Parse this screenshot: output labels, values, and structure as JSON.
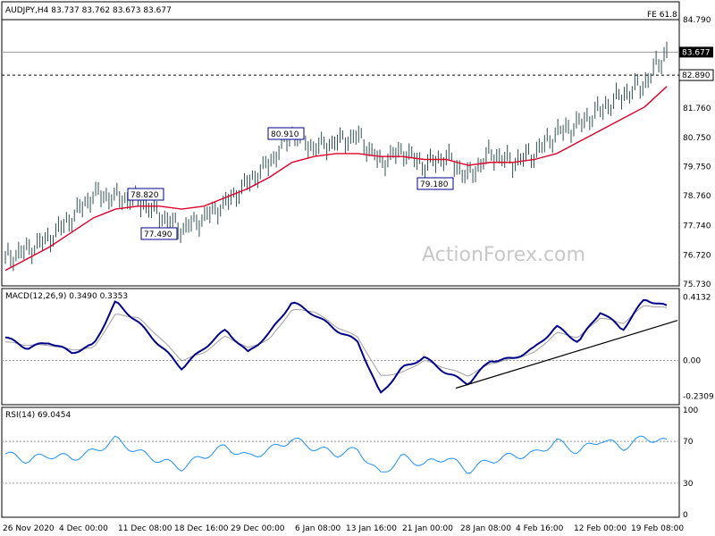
{
  "header": {
    "symbol_line": "AUDJPY,H4  83.737 83.762 83.673 83.677",
    "fe_label": "FE 61.8",
    "watermark": "ActionForex.com"
  },
  "colors": {
    "price_bars": "#2f4f4f",
    "ma_line": "#e0002a",
    "macd_line": "#00008b",
    "signal_line": "#a0a0a0",
    "rsi_line": "#1e90ff",
    "trendline": "#000000"
  },
  "chart_data": [
    {
      "type": "line",
      "name": "price",
      "ylim": [
        75.73,
        84.79
      ],
      "yticks": [
        "84.790",
        "83.677",
        "82.890",
        "81.760",
        "80.750",
        "79.750",
        "78.760",
        "77.740",
        "76.720",
        "75.730"
      ],
      "xticks": [
        "26 Nov 2020",
        "4 Dec 00:00",
        "11 Dec 08:00",
        "18 Dec 16:00",
        "29 Dec 00:00",
        "6 Jan 08:00",
        "13 Jan 16:00",
        "21 Jan 00:00",
        "28 Jan 08:00",
        "4 Feb 16:00",
        "12 Feb 00:00",
        "19 Feb 08:00"
      ],
      "series": [
        {
          "values": [
            76.6,
            76.9,
            77.3,
            78.0,
            78.8,
            78.7,
            78.6,
            78.1,
            77.6,
            78.0,
            78.5,
            79.2,
            79.9,
            80.9,
            80.4,
            80.6,
            80.8,
            79.9,
            80.3,
            79.8,
            80.1,
            79.4,
            80.2,
            79.9,
            80.2,
            80.9,
            81.2,
            81.7,
            82.2,
            82.6,
            83.7
          ]
        },
        {
          "values": [
            76.2,
            76.6,
            77.0,
            77.5,
            78.0,
            78.3,
            78.4,
            78.4,
            78.3,
            78.4,
            78.7,
            79.0,
            79.4,
            79.9,
            80.1,
            80.2,
            80.2,
            80.1,
            80.1,
            80.0,
            80.0,
            79.8,
            79.9,
            79.9,
            80.0,
            80.2,
            80.6,
            81.0,
            81.4,
            81.8,
            82.5
          ]
        }
      ],
      "levels": {
        "fe": 84.79,
        "current": 83.677,
        "dotted": 82.89
      },
      "annotations": [
        "80.910",
        "78.820",
        "77.490",
        "79.180"
      ]
    },
    {
      "type": "line",
      "name": "MACD(12,26,9)",
      "label": "MACD(12,26,9) 0.3490 0.3353",
      "ylim": [
        -0.27,
        0.45
      ],
      "yticks": [
        "0.4132",
        "0.00",
        "-0.2309"
      ],
      "series": [
        {
          "values": [
            0.15,
            0.08,
            0.12,
            0.05,
            0.1,
            0.38,
            0.25,
            0.1,
            -0.05,
            0.08,
            0.2,
            0.05,
            0.18,
            0.38,
            0.3,
            0.2,
            0.12,
            -0.22,
            -0.05,
            0.02,
            -0.08,
            -0.15,
            0.0,
            0.01,
            0.08,
            0.22,
            0.12,
            0.32,
            0.2,
            0.4,
            0.35
          ]
        },
        {
          "values": [
            0.12,
            0.1,
            0.1,
            0.07,
            0.08,
            0.3,
            0.28,
            0.15,
            0.0,
            0.05,
            0.16,
            0.08,
            0.14,
            0.33,
            0.32,
            0.22,
            0.15,
            -0.1,
            -0.08,
            0.0,
            -0.05,
            -0.1,
            -0.02,
            0.01,
            0.05,
            0.18,
            0.15,
            0.28,
            0.24,
            0.36,
            0.34
          ]
        }
      ],
      "trendline": [
        -0.18,
        0.26
      ]
    },
    {
      "type": "line",
      "name": "RSI(14)",
      "label": "RSI(14) 69.0454",
      "ylim": [
        0,
        100
      ],
      "yticks": [
        "100",
        "70",
        "30",
        "0"
      ],
      "series": [
        {
          "values": [
            58,
            52,
            57,
            54,
            60,
            72,
            60,
            52,
            45,
            56,
            65,
            55,
            62,
            72,
            64,
            58,
            62,
            38,
            55,
            48,
            55,
            42,
            52,
            56,
            58,
            70,
            60,
            72,
            64,
            74,
            69
          ]
        }
      ]
    }
  ]
}
